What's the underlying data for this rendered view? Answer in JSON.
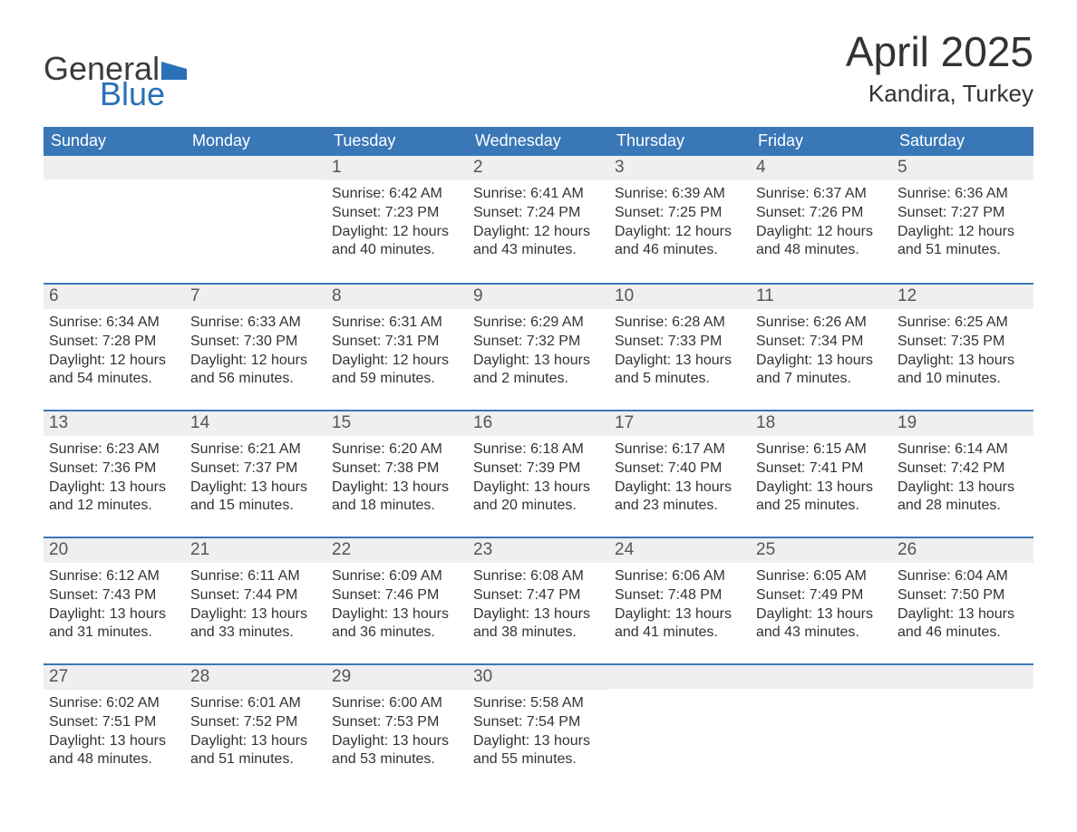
{
  "logo": {
    "text1": "General",
    "text2": "Blue",
    "flag_color": "#2a71b8"
  },
  "title": "April 2025",
  "location": "Kandira, Turkey",
  "colors": {
    "header_bg": "#3a77b7",
    "header_text": "#ffffff",
    "daynum_bg": "#efefef",
    "body_text": "#333333",
    "row_border": "#3a77b7",
    "page_bg": "#ffffff"
  },
  "typography": {
    "title_fontsize": 46,
    "location_fontsize": 26,
    "weekday_fontsize": 18,
    "daynum_fontsize": 19,
    "body_fontsize": 16
  },
  "weekdays": [
    "Sunday",
    "Monday",
    "Tuesday",
    "Wednesday",
    "Thursday",
    "Friday",
    "Saturday"
  ],
  "weeks": [
    [
      {
        "n": "",
        "sunrise": "",
        "sunset": "",
        "daylight": ""
      },
      {
        "n": "",
        "sunrise": "",
        "sunset": "",
        "daylight": ""
      },
      {
        "n": "1",
        "sunrise": "Sunrise: 6:42 AM",
        "sunset": "Sunset: 7:23 PM",
        "daylight": "Daylight: 12 hours and 40 minutes."
      },
      {
        "n": "2",
        "sunrise": "Sunrise: 6:41 AM",
        "sunset": "Sunset: 7:24 PM",
        "daylight": "Daylight: 12 hours and 43 minutes."
      },
      {
        "n": "3",
        "sunrise": "Sunrise: 6:39 AM",
        "sunset": "Sunset: 7:25 PM",
        "daylight": "Daylight: 12 hours and 46 minutes."
      },
      {
        "n": "4",
        "sunrise": "Sunrise: 6:37 AM",
        "sunset": "Sunset: 7:26 PM",
        "daylight": "Daylight: 12 hours and 48 minutes."
      },
      {
        "n": "5",
        "sunrise": "Sunrise: 6:36 AM",
        "sunset": "Sunset: 7:27 PM",
        "daylight": "Daylight: 12 hours and 51 minutes."
      }
    ],
    [
      {
        "n": "6",
        "sunrise": "Sunrise: 6:34 AM",
        "sunset": "Sunset: 7:28 PM",
        "daylight": "Daylight: 12 hours and 54 minutes."
      },
      {
        "n": "7",
        "sunrise": "Sunrise: 6:33 AM",
        "sunset": "Sunset: 7:30 PM",
        "daylight": "Daylight: 12 hours and 56 minutes."
      },
      {
        "n": "8",
        "sunrise": "Sunrise: 6:31 AM",
        "sunset": "Sunset: 7:31 PM",
        "daylight": "Daylight: 12 hours and 59 minutes."
      },
      {
        "n": "9",
        "sunrise": "Sunrise: 6:29 AM",
        "sunset": "Sunset: 7:32 PM",
        "daylight": "Daylight: 13 hours and 2 minutes."
      },
      {
        "n": "10",
        "sunrise": "Sunrise: 6:28 AM",
        "sunset": "Sunset: 7:33 PM",
        "daylight": "Daylight: 13 hours and 5 minutes."
      },
      {
        "n": "11",
        "sunrise": "Sunrise: 6:26 AM",
        "sunset": "Sunset: 7:34 PM",
        "daylight": "Daylight: 13 hours and 7 minutes."
      },
      {
        "n": "12",
        "sunrise": "Sunrise: 6:25 AM",
        "sunset": "Sunset: 7:35 PM",
        "daylight": "Daylight: 13 hours and 10 minutes."
      }
    ],
    [
      {
        "n": "13",
        "sunrise": "Sunrise: 6:23 AM",
        "sunset": "Sunset: 7:36 PM",
        "daylight": "Daylight: 13 hours and 12 minutes."
      },
      {
        "n": "14",
        "sunrise": "Sunrise: 6:21 AM",
        "sunset": "Sunset: 7:37 PM",
        "daylight": "Daylight: 13 hours and 15 minutes."
      },
      {
        "n": "15",
        "sunrise": "Sunrise: 6:20 AM",
        "sunset": "Sunset: 7:38 PM",
        "daylight": "Daylight: 13 hours and 18 minutes."
      },
      {
        "n": "16",
        "sunrise": "Sunrise: 6:18 AM",
        "sunset": "Sunset: 7:39 PM",
        "daylight": "Daylight: 13 hours and 20 minutes."
      },
      {
        "n": "17",
        "sunrise": "Sunrise: 6:17 AM",
        "sunset": "Sunset: 7:40 PM",
        "daylight": "Daylight: 13 hours and 23 minutes."
      },
      {
        "n": "18",
        "sunrise": "Sunrise: 6:15 AM",
        "sunset": "Sunset: 7:41 PM",
        "daylight": "Daylight: 13 hours and 25 minutes."
      },
      {
        "n": "19",
        "sunrise": "Sunrise: 6:14 AM",
        "sunset": "Sunset: 7:42 PM",
        "daylight": "Daylight: 13 hours and 28 minutes."
      }
    ],
    [
      {
        "n": "20",
        "sunrise": "Sunrise: 6:12 AM",
        "sunset": "Sunset: 7:43 PM",
        "daylight": "Daylight: 13 hours and 31 minutes."
      },
      {
        "n": "21",
        "sunrise": "Sunrise: 6:11 AM",
        "sunset": "Sunset: 7:44 PM",
        "daylight": "Daylight: 13 hours and 33 minutes."
      },
      {
        "n": "22",
        "sunrise": "Sunrise: 6:09 AM",
        "sunset": "Sunset: 7:46 PM",
        "daylight": "Daylight: 13 hours and 36 minutes."
      },
      {
        "n": "23",
        "sunrise": "Sunrise: 6:08 AM",
        "sunset": "Sunset: 7:47 PM",
        "daylight": "Daylight: 13 hours and 38 minutes."
      },
      {
        "n": "24",
        "sunrise": "Sunrise: 6:06 AM",
        "sunset": "Sunset: 7:48 PM",
        "daylight": "Daylight: 13 hours and 41 minutes."
      },
      {
        "n": "25",
        "sunrise": "Sunrise: 6:05 AM",
        "sunset": "Sunset: 7:49 PM",
        "daylight": "Daylight: 13 hours and 43 minutes."
      },
      {
        "n": "26",
        "sunrise": "Sunrise: 6:04 AM",
        "sunset": "Sunset: 7:50 PM",
        "daylight": "Daylight: 13 hours and 46 minutes."
      }
    ],
    [
      {
        "n": "27",
        "sunrise": "Sunrise: 6:02 AM",
        "sunset": "Sunset: 7:51 PM",
        "daylight": "Daylight: 13 hours and 48 minutes."
      },
      {
        "n": "28",
        "sunrise": "Sunrise: 6:01 AM",
        "sunset": "Sunset: 7:52 PM",
        "daylight": "Daylight: 13 hours and 51 minutes."
      },
      {
        "n": "29",
        "sunrise": "Sunrise: 6:00 AM",
        "sunset": "Sunset: 7:53 PM",
        "daylight": "Daylight: 13 hours and 53 minutes."
      },
      {
        "n": "30",
        "sunrise": "Sunrise: 5:58 AM",
        "sunset": "Sunset: 7:54 PM",
        "daylight": "Daylight: 13 hours and 55 minutes."
      },
      {
        "n": "",
        "sunrise": "",
        "sunset": "",
        "daylight": ""
      },
      {
        "n": "",
        "sunrise": "",
        "sunset": "",
        "daylight": ""
      },
      {
        "n": "",
        "sunrise": "",
        "sunset": "",
        "daylight": ""
      }
    ]
  ]
}
